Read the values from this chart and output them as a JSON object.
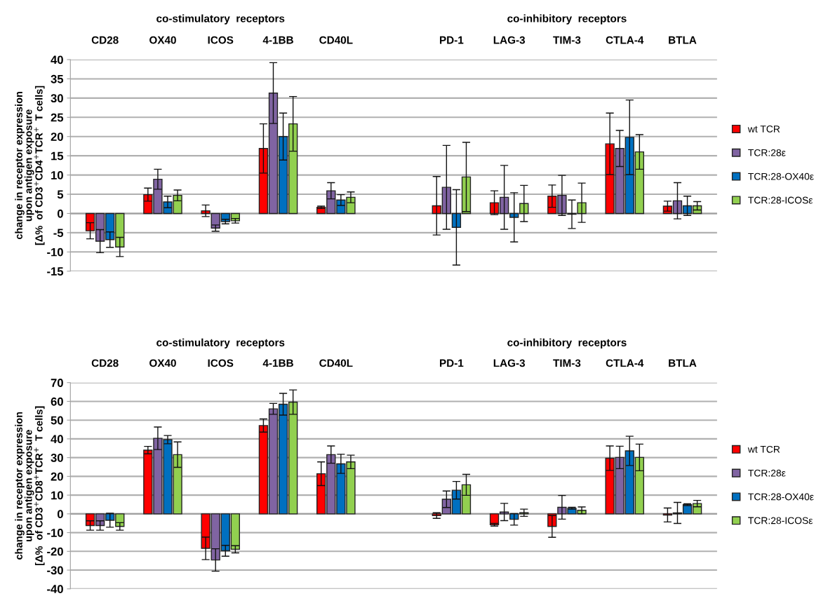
{
  "chart_data": [
    {
      "type": "bar",
      "ylabel": "change in receptor expression\nupon antigen exposure\n[Δ%  of CD3$^{+}$CD4$^{+}$TCR$^{+}$  T cells]",
      "annotations": [
        "co-stimulatory  receptors",
        "co-inhibitory  receptors"
      ],
      "categories": [
        "CD28",
        "OX40",
        "ICOS",
        "4-1BB",
        "CD40L",
        null,
        "PD-1",
        "LAG-3",
        "TIM-3",
        "CTLA-4",
        "BTLA"
      ],
      "series": [
        {
          "name": "wt TCR",
          "color": "#ff0000",
          "values": [
            -4.5,
            4.9,
            0.7,
            16.9,
            1.6,
            null,
            2.0,
            2.8,
            4.5,
            18.1,
            1.9
          ],
          "errors": [
            2.1,
            1.7,
            1.5,
            6.4,
            0.3,
            null,
            7.6,
            3.1,
            2.9,
            8.0,
            1.3
          ]
        },
        {
          "name": "TCR:28ε",
          "color": "#8064a2",
          "values": [
            -7.2,
            8.9,
            -3.8,
            31.3,
            5.9,
            null,
            6.8,
            4.2,
            4.7,
            16.9,
            3.3
          ],
          "errors": [
            3.0,
            2.6,
            0.8,
            7.9,
            2.1,
            null,
            10.9,
            8.3,
            5.2,
            4.7,
            4.7
          ]
        },
        {
          "name": "TCR:28-OX40ε",
          "color": "#0070c0",
          "values": [
            -6.8,
            3.0,
            -2.1,
            20.0,
            3.5,
            null,
            -3.6,
            -1.0,
            -0.2,
            19.8,
            2.0
          ],
          "errors": [
            2.0,
            1.5,
            0.6,
            6.1,
            1.4,
            null,
            9.8,
            6.4,
            3.7,
            9.7,
            2.5
          ]
        },
        {
          "name": "TCR:28-ICOSε",
          "color": "#92d050",
          "values": [
            -8.7,
            4.7,
            -1.9,
            23.3,
            4.2,
            null,
            9.5,
            2.6,
            2.8,
            16.0,
            2.0
          ],
          "errors": [
            2.5,
            1.4,
            0.6,
            7.1,
            1.4,
            null,
            9.0,
            4.7,
            5.1,
            4.5,
            1.1
          ]
        }
      ],
      "ylim": [
        -15,
        40
      ],
      "yticks": [
        -15,
        -10,
        -5,
        0,
        5,
        10,
        15,
        20,
        25,
        30,
        35,
        40
      ],
      "grid": "y",
      "legend": "right"
    },
    {
      "type": "bar",
      "ylabel": "change in receptor expression\nupon antigen exposure\n[Δ%  of CD3$^{+}$CD8$^{+}$TCR$^{+}$  T cells]",
      "annotations": [
        "co-stimulatory  receptors",
        "co-inhibitory  receptors"
      ],
      "categories": [
        "CD28",
        "OX40",
        "ICOS",
        "4-1BB",
        "CD40L",
        null,
        "PD-1",
        "LAG-3",
        "TIM-3",
        "CTLA-4",
        "BTLA"
      ],
      "series": [
        {
          "name": "wt TCR",
          "color": "#ff0000",
          "values": [
            -6.2,
            34.0,
            -18.4,
            47.1,
            21.4,
            null,
            -0.9,
            -5.8,
            -6.7,
            29.7,
            -0.6
          ],
          "errors": [
            2.5,
            2.0,
            6.0,
            3.5,
            6.3,
            null,
            1.5,
            0.7,
            5.8,
            6.5,
            3.7
          ]
        },
        {
          "name": "TCR:28ε",
          "color": "#8064a2",
          "values": [
            -6.2,
            40.3,
            -24.6,
            56.0,
            31.6,
            null,
            7.8,
            1.0,
            3.5,
            30.1,
            0.5
          ],
          "errors": [
            2.5,
            6.0,
            6.0,
            2.9,
            4.6,
            null,
            4.4,
            4.6,
            6.3,
            6.0,
            5.6
          ]
        },
        {
          "name": "TCR:28-OX40ε",
          "color": "#0070c0",
          "values": [
            -3.4,
            39.6,
            -19.7,
            58.5,
            26.7,
            null,
            12.6,
            -2.9,
            3.0,
            33.6,
            4.9
          ],
          "errors": [
            3.7,
            2.2,
            2.9,
            5.8,
            5.1,
            null,
            4.7,
            3.1,
            0.5,
            7.8,
            0.5
          ]
        },
        {
          "name": "TCR:28-ICOSε",
          "color": "#92d050",
          "values": [
            -6.7,
            31.6,
            -18.9,
            59.6,
            27.7,
            null,
            15.5,
            0.6,
            1.9,
            30.1,
            5.5
          ],
          "errors": [
            2.0,
            6.8,
            1.9,
            6.5,
            3.6,
            null,
            5.6,
            1.9,
            1.8,
            7.1,
            1.7
          ]
        }
      ],
      "ylim": [
        -40,
        70
      ],
      "yticks": [
        -40,
        -30,
        -20,
        -10,
        0,
        10,
        20,
        30,
        40,
        50,
        60,
        70
      ],
      "grid": "y",
      "legend": "right"
    }
  ]
}
